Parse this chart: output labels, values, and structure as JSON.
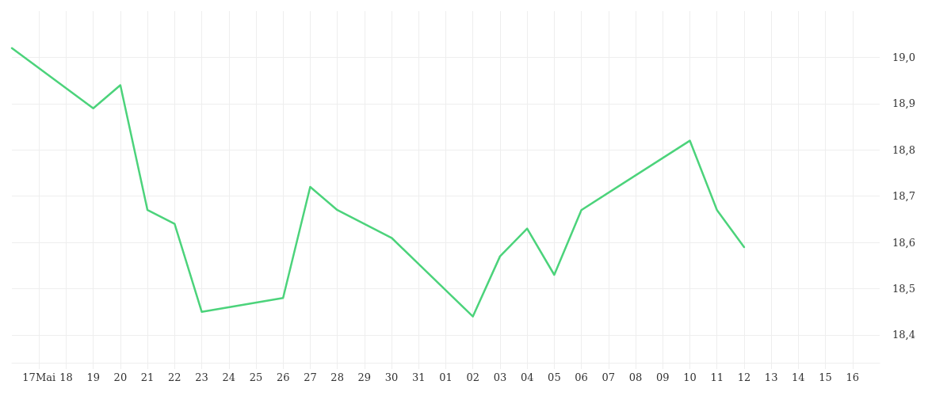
{
  "chart_data": {
    "type": "line",
    "x": [
      "--05-16",
      "--05-19",
      "--05-20",
      "--05-21",
      "--05-22",
      "--05-23",
      "--05-26",
      "--05-27",
      "--05-28",
      "--05-30",
      "--06-02",
      "--06-03",
      "--06-04",
      "--06-05",
      "--06-06",
      "--06-10",
      "--06-11",
      "--06-12"
    ],
    "series": [
      {
        "color": "#4cd37b",
        "values": [
          19.02,
          18.89,
          18.94,
          18.67,
          18.64,
          18.45,
          18.48,
          18.72,
          18.67,
          18.61,
          18.44,
          18.57,
          18.63,
          18.53,
          18.67,
          18.82,
          18.67,
          18.59
        ]
      }
    ],
    "xlim": [
      "--05-16",
      "--06-17"
    ],
    "xticks": [
      {
        "value": "--05-17",
        "label": "17Mai"
      },
      {
        "value": "--05-18",
        "label": "18"
      },
      {
        "value": "--05-19",
        "label": "19"
      },
      {
        "value": "--05-20",
        "label": "20"
      },
      {
        "value": "--05-21",
        "label": "21"
      },
      {
        "value": "--05-22",
        "label": "22"
      },
      {
        "value": "--05-23",
        "label": "23"
      },
      {
        "value": "--05-24",
        "label": "24"
      },
      {
        "value": "--05-25",
        "label": "25"
      },
      {
        "value": "--05-26",
        "label": "26"
      },
      {
        "value": "--05-27",
        "label": "27"
      },
      {
        "value": "--05-28",
        "label": "28"
      },
      {
        "value": "--05-29",
        "label": "29"
      },
      {
        "value": "--05-30",
        "label": "30"
      },
      {
        "value": "--05-31",
        "label": "31"
      },
      {
        "value": "--06-01",
        "label": "01"
      },
      {
        "value": "--06-02",
        "label": "02"
      },
      {
        "value": "--06-03",
        "label": "03"
      },
      {
        "value": "--06-04",
        "label": "04"
      },
      {
        "value": "--06-05",
        "label": "05"
      },
      {
        "value": "--06-06",
        "label": "06"
      },
      {
        "value": "--06-07",
        "label": "07"
      },
      {
        "value": "--06-08",
        "label": "08"
      },
      {
        "value": "--06-09",
        "label": "09"
      },
      {
        "value": "--06-10",
        "label": "10"
      },
      {
        "value": "--06-11",
        "label": "11"
      },
      {
        "value": "--06-12",
        "label": "12"
      },
      {
        "value": "--06-13",
        "label": "13"
      },
      {
        "value": "--06-14",
        "label": "14"
      },
      {
        "value": "--06-15",
        "label": "15"
      },
      {
        "value": "--06-16",
        "label": "16"
      }
    ],
    "ylim": [
      18.34,
      19.1
    ],
    "yticks": [
      {
        "value": 18.4,
        "label": "18,4"
      },
      {
        "value": 18.5,
        "label": "18,5"
      },
      {
        "value": 18.6,
        "label": "18,6"
      },
      {
        "value": 18.7,
        "label": "18,7"
      },
      {
        "value": 18.8,
        "label": "18,8"
      },
      {
        "value": 18.9,
        "label": "18,9"
      },
      {
        "value": 19.0,
        "label": "19,0"
      }
    ],
    "grid": true,
    "marker": "none",
    "line_style": "solid"
  }
}
